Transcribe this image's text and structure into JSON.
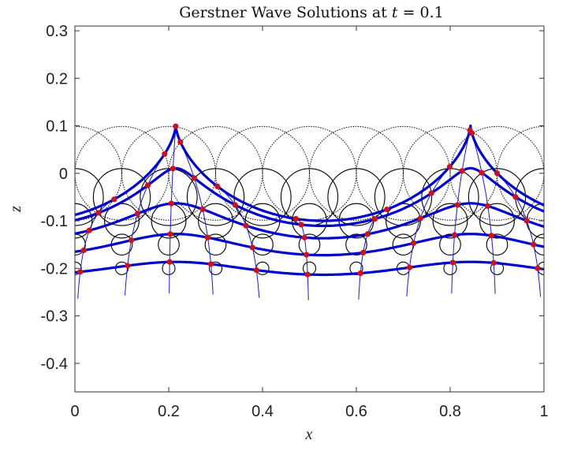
{
  "chart_data": {
    "type": "line",
    "title_prefix": "Gerstner Wave Solutions at ",
    "title_var": "t",
    "title_suffix": " = 0.1",
    "xlabel": "x",
    "ylabel": "z",
    "xlim": [
      0,
      1
    ],
    "ylim": [
      -0.46,
      0.31
    ],
    "xticks": [
      "0",
      "0.2",
      "0.4",
      "0.6",
      "0.8",
      "1"
    ],
    "xtick_values": [
      0,
      0.2,
      0.4,
      0.6,
      0.8,
      1
    ],
    "yticks": [
      "0.3",
      "0.2",
      "0.1",
      "0",
      "-0.1",
      "-0.2",
      "-0.3",
      "-0.4"
    ],
    "ytick_values": [
      0.3,
      0.2,
      0.1,
      0,
      -0.1,
      -0.2,
      -0.3,
      -0.4
    ],
    "t": 0.1,
    "wavenumber": 10,
    "amplitude": 0.1,
    "crest_x": 0.215,
    "levels": [
      0,
      -0.05,
      -0.1,
      -0.15,
      -0.2
    ],
    "particle_x0": [
      0,
      0.1,
      0.2,
      0.3,
      0.4,
      0.5,
      0.6,
      0.7,
      0.8,
      0.9,
      1.0
    ],
    "trajectory_line_bottom": -0.26,
    "colors": {
      "surface": "#0000cc",
      "particle": "#cc1122",
      "circle": "#000000",
      "lagrangian_line": "#1a1acc"
    }
  }
}
